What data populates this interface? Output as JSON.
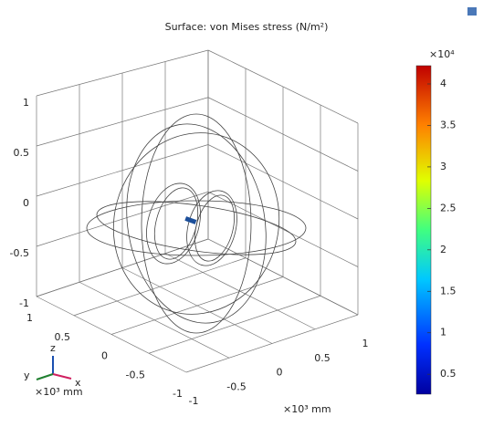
{
  "chart_data": {
    "type": "surface3d",
    "title": "Surface: von Mises stress (N/m²)",
    "colorbar": {
      "multiplier": "×10⁴",
      "lim": [
        0.26,
        4.22
      ],
      "ticks": [
        0.5,
        1,
        1.5,
        2,
        2.5,
        3,
        3.5,
        4
      ]
    },
    "zticks": [
      1,
      0.5,
      0,
      -0.5,
      -1
    ],
    "yticks": [
      1,
      0.5,
      0,
      -0.5,
      -1
    ],
    "xticks": [
      -1,
      -0.5,
      0,
      0.5,
      1
    ],
    "axis_unit": "×10³ mm",
    "triad": {
      "z": "z",
      "y": "y",
      "x": "x",
      "unit": "×10³ mm"
    }
  }
}
